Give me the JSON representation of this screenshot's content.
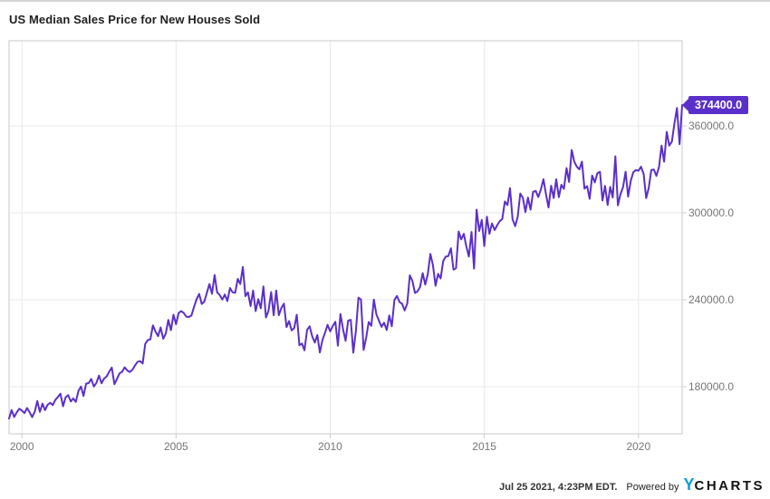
{
  "header": {
    "title": "US Median Sales Price for New Houses Sold"
  },
  "chart_data": {
    "type": "line",
    "title": "US Median Sales Price for New Houses Sold",
    "frequency": "monthly",
    "x_start": "1999-08",
    "x_end": "2021-06",
    "grid": true,
    "legend": "none",
    "y_axis_side": "right",
    "line_color": "#5b2fc9",
    "badge_color": "#5b2fc9",
    "ylim": [
      147500,
      418750
    ],
    "y_ticks": [
      {
        "value": 360000,
        "label": "360000.0"
      },
      {
        "value": 300000,
        "label": "300000.0"
      },
      {
        "value": 240000,
        "label": "240000.0"
      },
      {
        "value": 180000,
        "label": "180000.0"
      }
    ],
    "x_ticks": [
      {
        "year": 2000,
        "label": "2000"
      },
      {
        "year": 2005,
        "label": "2005"
      },
      {
        "year": 2010,
        "label": "2010"
      },
      {
        "year": 2015,
        "label": "2015"
      },
      {
        "year": 2020,
        "label": "2020"
      }
    ],
    "last_point": {
      "value": 374400.0,
      "label": "374400.0"
    },
    "values": [
      158000,
      163900,
      159100,
      162300,
      164800,
      163500,
      161800,
      165300,
      162400,
      159000,
      162800,
      170200,
      162600,
      168300,
      163800,
      167500,
      168900,
      167300,
      170800,
      172900,
      175200,
      166500,
      172600,
      174200,
      169800,
      171900,
      169500,
      177100,
      180100,
      173600,
      182100,
      182500,
      185400,
      180100,
      182600,
      187700,
      182400,
      185600,
      187100,
      190400,
      193200,
      181700,
      185400,
      189200,
      190300,
      193400,
      191200,
      190200,
      191600,
      194600,
      197100,
      197600,
      196000,
      209500,
      212100,
      212700,
      222300,
      218100,
      214900,
      220900,
      213100,
      216700,
      226100,
      219000,
      229700,
      223100,
      230900,
      232100,
      230900,
      228300,
      228100,
      229100,
      235100,
      240300,
      244000,
      237100,
      238700,
      244900,
      250800,
      244100,
      257100,
      245100,
      243300,
      240100,
      243600,
      239100,
      248100,
      245200,
      244800,
      254400,
      250900,
      262600,
      242500,
      245100,
      235600,
      246300,
      232200,
      240400,
      234100,
      249200,
      227800,
      232400,
      245300,
      229300,
      246400,
      229300,
      234300,
      237300,
      221100,
      225300,
      218900,
      220500,
      229600,
      208600,
      209800,
      205100,
      219200,
      221700,
      214800,
      210500,
      215700,
      203600,
      212400,
      217200,
      222700,
      218200,
      221900,
      224800,
      208300,
      230100,
      219600,
      211700,
      225600,
      226100,
      203500,
      218100,
      241500,
      240100,
      205400,
      213800,
      224700,
      222000,
      240200,
      229900,
      225500,
      221300,
      224200,
      219100,
      229100,
      221700,
      239900,
      242600,
      238400,
      237200,
      232600,
      237400,
      256900,
      253200,
      244700,
      245800,
      248900,
      258400,
      250500,
      257500,
      271600,
      263900,
      249700,
      257900,
      254700,
      266800,
      269800,
      270100,
      275500,
      260800,
      261800,
      287100,
      281700,
      285500,
      276700,
      269800,
      286800,
      261500,
      302200,
      287500,
      295100,
      277000,
      297300,
      285500,
      292700,
      288100,
      291300,
      294300,
      295800,
      307800,
      305300,
      317000,
      295500,
      290800,
      297300,
      313300,
      310300,
      300500,
      310500,
      302200,
      314500,
      315100,
      310900,
      316000,
      323200,
      312900,
      303700,
      318700,
      310200,
      323100,
      310800,
      319400,
      316500,
      330900,
      321300,
      343400,
      335400,
      331800,
      330000,
      335300,
      316700,
      318500,
      309700,
      325700,
      321000,
      327300,
      328300,
      308500,
      318600,
      305400,
      317900,
      310600,
      339000,
      305100,
      312800,
      317800,
      328400,
      311200,
      322100,
      328000,
      329500,
      329000,
      331800,
      326900,
      310100,
      317100,
      329600,
      329800,
      325500,
      331600,
      346400,
      335300,
      355900,
      346400,
      349200,
      361700,
      372400,
      347400,
      374400
    ]
  },
  "footer": {
    "timestamp": "Jul 25 2021, 4:23PM EDT.",
    "powered_by": "Powered by",
    "logo_y": "Y",
    "logo_charts": "CHARTS"
  }
}
